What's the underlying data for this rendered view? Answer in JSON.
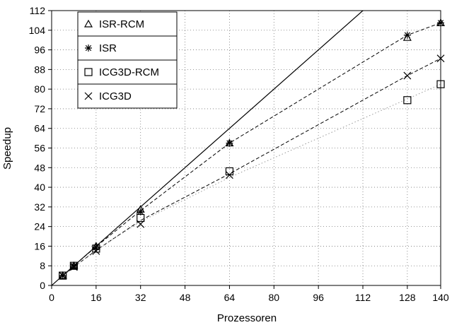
{
  "chart_data": {
    "type": "scatter",
    "xlabel": "Prozessoren",
    "ylabel": "Speedup",
    "xlim": [
      0,
      140
    ],
    "ylim": [
      0,
      112
    ],
    "xticks": [
      0,
      16,
      32,
      48,
      64,
      80,
      96,
      112,
      128,
      140
    ],
    "yticks": [
      0,
      8,
      16,
      24,
      32,
      40,
      48,
      56,
      64,
      72,
      80,
      88,
      96,
      104,
      112
    ],
    "grid": "dotted",
    "legend_position": "top-left",
    "series": [
      {
        "name": "ISR-RCM",
        "marker": "triangle",
        "points": [
          [
            4,
            4
          ],
          [
            8,
            8
          ],
          [
            16,
            16
          ],
          [
            32,
            31
          ],
          [
            64,
            58
          ],
          [
            128,
            101
          ],
          [
            140,
            107
          ]
        ]
      },
      {
        "name": "ISR",
        "marker": "asterisk",
        "points": [
          [
            4,
            4
          ],
          [
            8,
            8
          ],
          [
            16,
            15.5
          ],
          [
            32,
            30
          ],
          [
            64,
            58
          ],
          [
            128,
            102
          ],
          [
            140,
            107
          ]
        ]
      },
      {
        "name": "ICG3D-RCM",
        "marker": "square",
        "points": [
          [
            4,
            4
          ],
          [
            8,
            8
          ],
          [
            16,
            15
          ],
          [
            32,
            27.5
          ],
          [
            64,
            46.5
          ],
          [
            128,
            75.5
          ],
          [
            140,
            82
          ]
        ]
      },
      {
        "name": "ICG3D",
        "marker": "x",
        "points": [
          [
            4,
            4
          ],
          [
            8,
            7.5
          ],
          [
            16,
            14
          ],
          [
            32,
            25
          ],
          [
            64,
            45
          ],
          [
            128,
            85.5
          ],
          [
            140,
            92.5
          ]
        ]
      }
    ],
    "reference_line": {
      "style": "solid",
      "points": [
        [
          0,
          0
        ],
        [
          112,
          112
        ]
      ]
    },
    "fit_lines": [
      {
        "style": "dashed",
        "points": [
          [
            4,
            4
          ],
          [
            8,
            8
          ],
          [
            16,
            15.8
          ],
          [
            32,
            30.5
          ],
          [
            64,
            58
          ],
          [
            128,
            102
          ],
          [
            140,
            107
          ]
        ]
      },
      {
        "style": "dashed",
        "points": [
          [
            4,
            4
          ],
          [
            8,
            7.5
          ],
          [
            16,
            14.3
          ],
          [
            32,
            26.5
          ],
          [
            64,
            45.5
          ],
          [
            128,
            85.5
          ],
          [
            140,
            92.5
          ]
        ]
      },
      {
        "style": "dotted",
        "points": [
          [
            4,
            4
          ],
          [
            16,
            14.5
          ],
          [
            32,
            26
          ],
          [
            64,
            44
          ],
          [
            96,
            60
          ],
          [
            140,
            82
          ]
        ]
      }
    ]
  }
}
